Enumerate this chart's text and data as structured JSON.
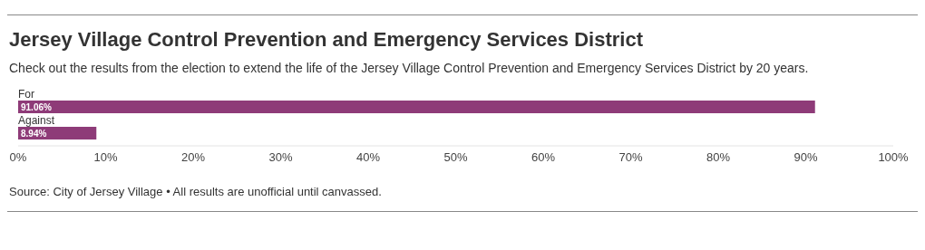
{
  "chart_data": {
    "type": "bar",
    "orientation": "horizontal",
    "title": "Jersey Village Control Prevention and Emergency Services District",
    "subtitle": "Check out the results from the election to extend the life of the Jersey Village Control Prevention and Emergency Services District by 20 years.",
    "categories": [
      "For",
      "Against"
    ],
    "values": [
      91.06,
      8.94
    ],
    "value_labels": [
      "91.06%",
      "8.94%"
    ],
    "color": "#8e3b78",
    "xlim": [
      0,
      100
    ],
    "xticks": [
      {
        "value": 0,
        "label": "0%"
      },
      {
        "value": 10,
        "label": "10%"
      },
      {
        "value": 20,
        "label": "20%"
      },
      {
        "value": 30,
        "label": "30%"
      },
      {
        "value": 40,
        "label": "40%"
      },
      {
        "value": 50,
        "label": "50%"
      },
      {
        "value": 60,
        "label": "60%"
      },
      {
        "value": 70,
        "label": "70%"
      },
      {
        "value": 80,
        "label": "80%"
      },
      {
        "value": 90,
        "label": "90%"
      },
      {
        "value": 100,
        "label": "100%"
      }
    ],
    "grid": false,
    "annotations": [
      "Source: City of Jersey Village • All results are unofficial until canvassed."
    ]
  }
}
